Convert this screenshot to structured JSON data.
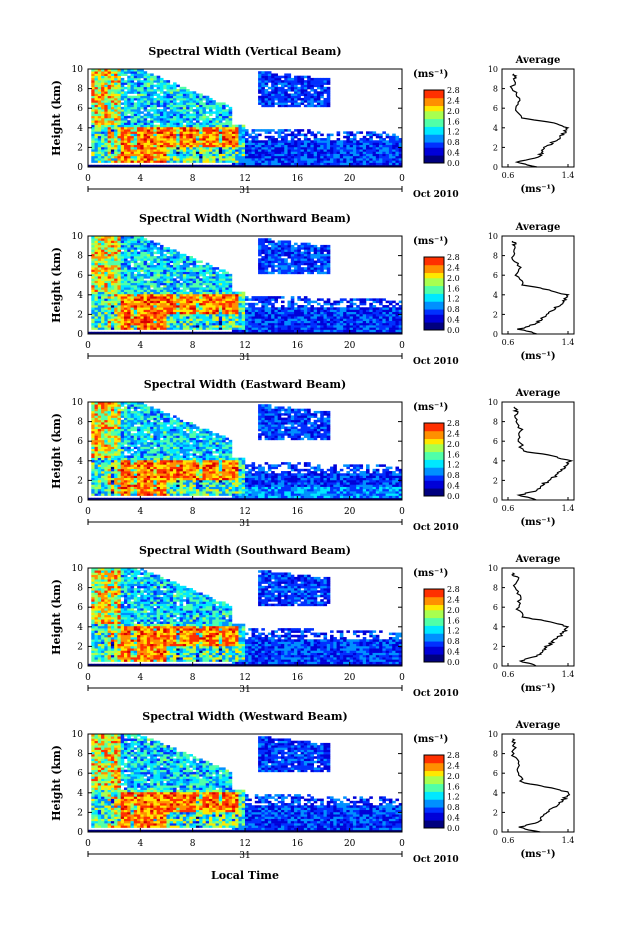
{
  "figure": {
    "xlabel": "Local Time",
    "date_label": "Oct 2010",
    "day_label": "31",
    "unit_label": "(ms⁻¹)",
    "colorbar_ticks": [
      "2.8",
      "2.4",
      "2.0",
      "1.6",
      "1.2",
      "0.8",
      "0.4",
      "0.0"
    ],
    "x_ticks": [
      "0",
      "4",
      "8",
      "12",
      "16",
      "20",
      "0"
    ],
    "y_ticks": [
      "0",
      "2",
      "4",
      "6",
      "8",
      "10"
    ],
    "ylabel": "Height (km)",
    "avg_title": "Average",
    "avg_xticks": [
      "0.6",
      "1.4"
    ],
    "avg_xlabel": "(ms⁻¹)",
    "colormap": [
      "#00007f",
      "#0000d8",
      "#0030ff",
      "#0090ff",
      "#00e8ff",
      "#50ffa8",
      "#a8ff50",
      "#ffe800",
      "#ff9000",
      "#ff3000",
      "#d80000"
    ]
  },
  "chart_data": [
    {
      "type": "heatmap",
      "title": "Spectral Width (Vertical Beam)",
      "xlim": [
        0,
        24
      ],
      "ylim": [
        0,
        10
      ],
      "clim": [
        0,
        2.8
      ],
      "units": "ms⁻¹",
      "average_profile": {
        "x_range": [
          0.6,
          1.4
        ],
        "height": [
          0,
          0.5,
          1,
          1.5,
          2,
          2.5,
          3,
          3.5,
          4,
          4.5,
          5,
          6,
          7,
          8,
          9,
          9.5
        ],
        "width": [
          1.0,
          0.7,
          1.0,
          1.05,
          1.1,
          1.2,
          1.3,
          1.35,
          1.4,
          1.2,
          0.8,
          0.7,
          0.75,
          0.65,
          0.7,
          0.68
        ]
      }
    },
    {
      "type": "heatmap",
      "title": "Spectral Width (Northward Beam)",
      "xlim": [
        0,
        24
      ],
      "ylim": [
        0,
        10
      ],
      "clim": [
        0,
        2.8
      ],
      "units": "ms⁻¹",
      "average_profile": {
        "x_range": [
          0.6,
          1.4
        ],
        "height": [
          0,
          0.5,
          1,
          1.5,
          2,
          2.5,
          3,
          3.5,
          4,
          4.5,
          5,
          6,
          7,
          8,
          9,
          9.5
        ],
        "width": [
          1.0,
          0.75,
          0.95,
          1.05,
          1.1,
          1.2,
          1.3,
          1.35,
          1.38,
          1.15,
          0.8,
          0.72,
          0.75,
          0.65,
          0.7,
          0.66
        ]
      }
    },
    {
      "type": "heatmap",
      "title": "Spectral Width (Eastward Beam)",
      "xlim": [
        0,
        24
      ],
      "ylim": [
        0,
        10
      ],
      "clim": [
        0,
        2.8
      ],
      "units": "ms⁻¹",
      "average_profile": {
        "x_range": [
          0.6,
          1.4
        ],
        "height": [
          0,
          0.5,
          1,
          1.5,
          2,
          2.5,
          3,
          3.5,
          4,
          4.5,
          5,
          6,
          7,
          8,
          9,
          9.5
        ],
        "width": [
          1.0,
          0.75,
          1.0,
          1.05,
          1.15,
          1.25,
          1.3,
          1.38,
          1.42,
          1.2,
          0.8,
          0.75,
          0.78,
          0.7,
          0.72,
          0.68
        ]
      }
    },
    {
      "type": "heatmap",
      "title": "Spectral Width (Southward Beam)",
      "xlim": [
        0,
        24
      ],
      "ylim": [
        0,
        10
      ],
      "clim": [
        0,
        2.8
      ],
      "units": "ms⁻¹",
      "average_profile": {
        "x_range": [
          0.6,
          1.4
        ],
        "height": [
          0,
          0.5,
          1,
          1.5,
          2,
          2.5,
          3,
          3.5,
          4,
          4.5,
          5,
          6,
          7,
          8,
          9,
          9.5
        ],
        "width": [
          1.0,
          0.75,
          1.0,
          1.05,
          1.12,
          1.2,
          1.28,
          1.35,
          1.4,
          1.18,
          0.8,
          0.72,
          0.78,
          0.68,
          0.72,
          0.66
        ]
      }
    },
    {
      "type": "heatmap",
      "title": "Spectral Width (Westward Beam)",
      "xlim": [
        0,
        24
      ],
      "ylim": [
        0,
        10
      ],
      "clim": [
        0,
        2.8
      ],
      "units": "ms⁻¹",
      "average_profile": {
        "x_range": [
          0.6,
          1.4
        ],
        "height": [
          0,
          0.5,
          1,
          1.5,
          2,
          2.5,
          3,
          3.5,
          4,
          4.5,
          5,
          6,
          7,
          8,
          9,
          9.5
        ],
        "width": [
          1.0,
          0.75,
          1.0,
          1.05,
          1.12,
          1.22,
          1.3,
          1.36,
          1.42,
          1.2,
          0.8,
          0.72,
          0.76,
          0.66,
          0.7,
          0.66
        ]
      }
    }
  ]
}
